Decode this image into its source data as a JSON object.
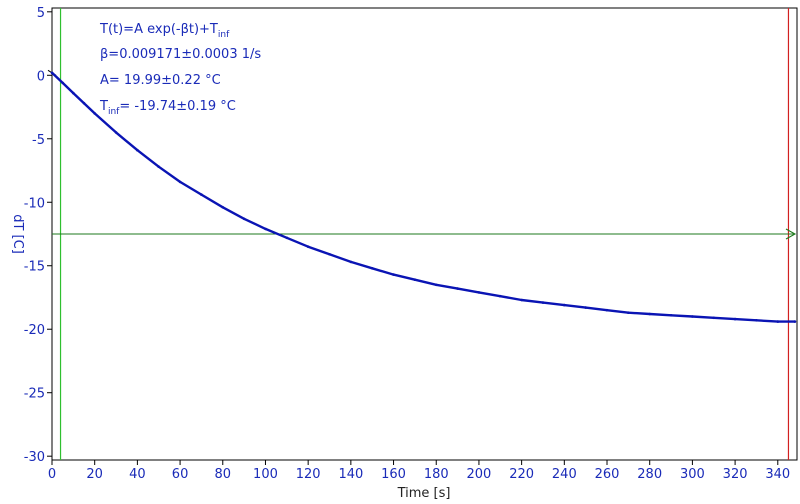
{
  "chart_data": {
    "type": "line",
    "xlabel": "Time [s]",
    "ylabel": "dT [C]",
    "xlim": [
      0,
      349
    ],
    "ylim": [
      -30.3,
      5.3
    ],
    "x_ticks": [
      0,
      20,
      40,
      60,
      80,
      100,
      120,
      140,
      160,
      180,
      200,
      220,
      240,
      260,
      280,
      300,
      320,
      340
    ],
    "y_ticks": [
      5,
      0,
      -5,
      -10,
      -15,
      -20,
      -25,
      -30
    ],
    "grid": false,
    "series": [
      {
        "color": "#0a14b4",
        "x": [
          0,
          5,
          10,
          15,
          20,
          30,
          40,
          50,
          60,
          70,
          80,
          90,
          100,
          110,
          120,
          130,
          140,
          150,
          160,
          170,
          180,
          190,
          200,
          210,
          220,
          230,
          240,
          250,
          260,
          270,
          280,
          290,
          300,
          310,
          320,
          330,
          340,
          348
        ],
        "y": [
          0.2,
          -0.6,
          -1.4,
          -2.2,
          -3.0,
          -4.5,
          -5.9,
          -7.2,
          -8.4,
          -9.4,
          -10.4,
          -11.3,
          -12.1,
          -12.8,
          -13.5,
          -14.1,
          -14.7,
          -15.2,
          -15.7,
          -16.1,
          -16.5,
          -16.8,
          -17.1,
          -17.4,
          -17.7,
          -17.9,
          -18.1,
          -18.3,
          -18.5,
          -18.7,
          -18.8,
          -18.9,
          -19.0,
          -19.1,
          -19.2,
          -19.3,
          -19.4,
          -19.4
        ]
      }
    ],
    "markers": {
      "vertical_green_x": 4,
      "vertical_red_x": 345,
      "horizontal_green_y": -12.5
    },
    "annotations": {
      "model_main": "T(t)=A exp(-βt)+T",
      "model_sub": "inf",
      "beta": "β=0.009171±0.0003 1/s",
      "amplitude": "A= 19.99±0.22 °C",
      "tinf_main": "T",
      "tinf_sub": "inf",
      "tinf_value": "= -19.74±0.19 °C"
    },
    "colors": {
      "data": "#0a14b4",
      "green_marker": "#2fbf2f",
      "red_marker": "#d22020",
      "horizontal_marker": "#1e7a1e",
      "tick_text": "#1a2bb8"
    }
  }
}
